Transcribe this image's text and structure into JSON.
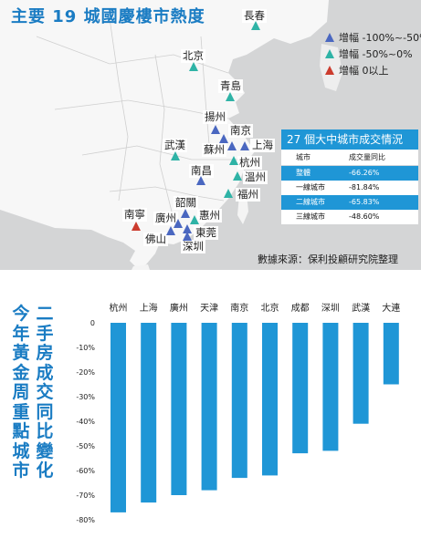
{
  "map": {
    "title": "主要 19 城國慶樓市熱度",
    "legend": [
      {
        "marker": "triangle",
        "color": "#4a67c0",
        "label": "增幅 -100%~-50%"
      },
      {
        "marker": "triangle",
        "color": "#2fb3a6",
        "label": "增幅 -50%~0%"
      },
      {
        "marker": "triangle",
        "color": "#cc3c2e",
        "label": "增幅 0以上"
      }
    ],
    "cities": [
      {
        "name": "長春",
        "color": "#2fb3a6"
      },
      {
        "name": "北京",
        "color": "#2fb3a6"
      },
      {
        "name": "青島",
        "color": "#2fb3a6"
      },
      {
        "name": "揚州",
        "color": "#4a67c0"
      },
      {
        "name": "南京",
        "color": "#4a67c0"
      },
      {
        "name": "蘇州",
        "color": "#4a67c0"
      },
      {
        "name": "上海",
        "color": "#4a67c0"
      },
      {
        "name": "武漢",
        "color": "#2fb3a6"
      },
      {
        "name": "杭州",
        "color": "#2fb3a6"
      },
      {
        "name": "南昌",
        "color": "#4a67c0"
      },
      {
        "name": "溫州",
        "color": "#2fb3a6"
      },
      {
        "name": "福州",
        "color": "#2fb3a6"
      },
      {
        "name": "韶關",
        "color": "#4a67c0"
      },
      {
        "name": "南寧",
        "color": "#cc3c2e"
      },
      {
        "name": "廣州",
        "color": "#4a67c0"
      },
      {
        "name": "惠州",
        "color": "#2fb3a6"
      },
      {
        "name": "佛山",
        "color": "#4a67c0"
      },
      {
        "name": "東莞",
        "color": "#4a67c0"
      },
      {
        "name": "深圳",
        "color": "#4a67c0"
      }
    ],
    "stats": {
      "title": "27 個大中城市成交情況",
      "headers": [
        "城市",
        "成交量同比"
      ],
      "rows": [
        {
          "city": "整體",
          "change": "-66.26%"
        },
        {
          "city": "一線城市",
          "change": "-81.84%"
        },
        {
          "city": "二線城市",
          "change": "-65.83%"
        },
        {
          "city": "三線城市",
          "change": "-48.60%"
        }
      ]
    },
    "source": "數據來源：保利投顧研究院整理"
  },
  "chart_data": {
    "type": "bar",
    "title_lines": [
      "二手房成交同比變化",
      "今年黃金周重點城市"
    ],
    "categories": [
      "杭州",
      "上海",
      "廣州",
      "天津",
      "南京",
      "北京",
      "成都",
      "深圳",
      "武漢",
      "大連"
    ],
    "values": [
      -77,
      -73,
      -70,
      -68,
      -63,
      -62,
      -53,
      -52,
      -41,
      -25
    ],
    "yticks": [
      "0",
      "-10%",
      "-20%",
      "-30%",
      "-40%",
      "-50%",
      "-60%",
      "-70%",
      "-80%"
    ],
    "ylim": [
      -80,
      0
    ],
    "bar_color": "#1f96d6",
    "grid": false
  }
}
